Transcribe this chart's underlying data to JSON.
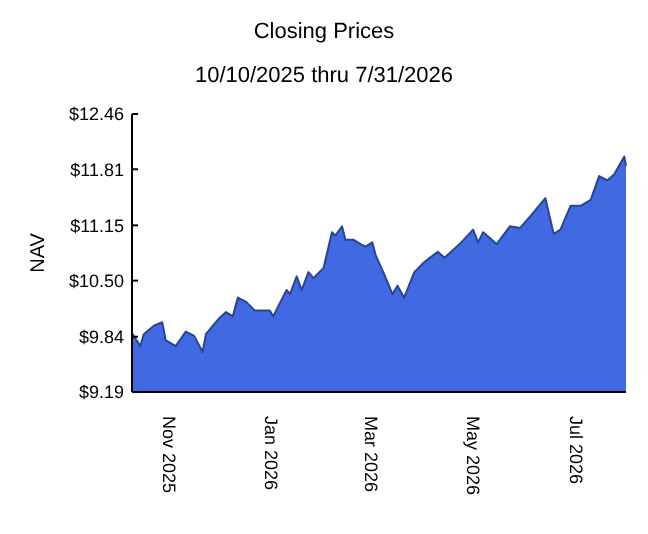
{
  "chart_data": {
    "type": "area",
    "title": "Closing Prices",
    "subtitle": "10/10/2025 thru 7/31/2026",
    "ylabel": "NAV",
    "x": [
      "2025-10-10",
      "2025-10-15",
      "2025-10-17",
      "2025-10-23",
      "2025-10-28",
      "2025-10-30",
      "2025-11-05",
      "2025-11-11",
      "2025-11-16",
      "2025-11-21",
      "2025-11-23",
      "2025-11-28",
      "2025-12-01",
      "2025-12-05",
      "2025-12-09",
      "2025-12-12",
      "2025-12-17",
      "2025-12-22",
      "2025-12-31",
      "2026-01-02",
      "2026-01-10",
      "2026-01-12",
      "2026-01-16",
      "2026-01-19",
      "2026-01-23",
      "2026-01-26",
      "2026-02-01",
      "2026-02-06",
      "2026-02-08",
      "2026-02-12",
      "2026-02-14",
      "2026-02-19",
      "2026-02-23",
      "2026-02-26",
      "2026-03-02",
      "2026-03-04",
      "2026-03-09",
      "2026-03-14",
      "2026-03-17",
      "2026-03-21",
      "2026-03-27",
      "2026-04-02",
      "2026-04-10",
      "2026-04-14",
      "2026-04-23",
      "2026-05-01",
      "2026-05-04",
      "2026-05-07",
      "2026-05-15",
      "2026-05-23",
      "2026-05-29",
      "2026-06-05",
      "2026-06-13",
      "2026-06-18",
      "2026-06-22",
      "2026-06-28",
      "2026-07-04",
      "2026-07-10",
      "2026-07-15",
      "2026-07-20",
      "2026-07-24",
      "2026-07-30",
      "2026-07-31"
    ],
    "series": [
      {
        "color": "#4169e1",
        "values": [
          9.88,
          9.73,
          9.87,
          9.97,
          10.01,
          9.8,
          9.73,
          9.9,
          9.85,
          9.66,
          9.87,
          9.99,
          10.06,
          10.13,
          10.08,
          10.3,
          10.25,
          10.15,
          10.15,
          10.08,
          10.39,
          10.34,
          10.55,
          10.39,
          10.6,
          10.53,
          10.65,
          11.07,
          11.03,
          11.14,
          10.98,
          10.98,
          10.93,
          10.9,
          10.95,
          10.8,
          10.58,
          10.34,
          10.44,
          10.3,
          10.6,
          10.72,
          10.84,
          10.77,
          10.93,
          11.1,
          10.95,
          11.07,
          10.93,
          11.14,
          11.12,
          11.28,
          11.47,
          11.05,
          11.1,
          11.38,
          11.38,
          11.45,
          11.73,
          11.68,
          11.75,
          11.96,
          11.85
        ]
      }
    ],
    "xlim": [
      "2025-10-10",
      "2026-07-31"
    ],
    "xticks": [
      {
        "value": "2025-11-01",
        "label": "Nov 2025"
      },
      {
        "value": "2026-01-01",
        "label": "Jan 2026"
      },
      {
        "value": "2026-03-01",
        "label": "Mar 2026"
      },
      {
        "value": "2026-05-01",
        "label": "May 2026"
      },
      {
        "value": "2026-07-01",
        "label": "Jul 2026"
      }
    ],
    "ylim": [
      9.19,
      12.46
    ],
    "yticks": [
      {
        "value": 9.19,
        "label": "$9.19"
      },
      {
        "value": 9.84,
        "label": "$9.84"
      },
      {
        "value": 10.5,
        "label": "$10.50"
      },
      {
        "value": 11.15,
        "label": "$11.15"
      },
      {
        "value": 11.81,
        "label": "$11.81"
      },
      {
        "value": 12.46,
        "label": "$12.46"
      }
    ],
    "grid": false
  }
}
